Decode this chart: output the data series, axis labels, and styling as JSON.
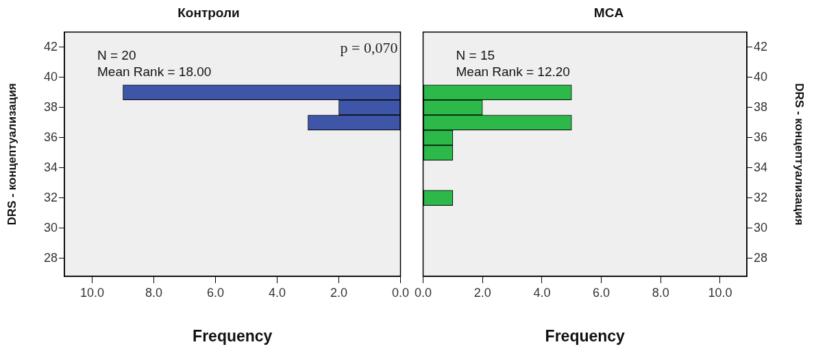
{
  "chart_data": [
    {
      "type": "histogram",
      "orientation": "horizontal",
      "title": "Контроли",
      "xlabel": "Frequency",
      "ylabel": "DRS - концептуализация",
      "bins": [
        31.5,
        32.5,
        33.5,
        34.5,
        35.5,
        36.5,
        37.5,
        38.5,
        39.5
      ],
      "values": [
        0,
        0,
        0,
        0,
        0,
        3,
        2,
        9
      ],
      "color": "#3f56a8",
      "xlim": [
        10.9,
        0
      ],
      "xticks": [
        {
          "value": 10,
          "label": "10.0"
        },
        {
          "value": 8,
          "label": "8.0"
        },
        {
          "value": 6,
          "label": "6.0"
        },
        {
          "value": 4,
          "label": "4.0"
        },
        {
          "value": 2,
          "label": "2.0"
        },
        {
          "value": 0,
          "label": "0.0"
        }
      ],
      "ylim": [
        26.8,
        43
      ],
      "yticks": [
        28,
        30,
        32,
        34,
        36,
        38,
        40,
        42
      ],
      "grid": false,
      "annotations": [
        "N = 20",
        "Mean Rank = 18.00",
        "p = 0,070"
      ]
    },
    {
      "type": "histogram",
      "orientation": "horizontal",
      "title": "MCA",
      "xlabel": "Frequency",
      "ylabel": "DRS - концептуализация",
      "bins": [
        31.5,
        32.5,
        33.5,
        34.5,
        35.5,
        36.5,
        37.5,
        38.5,
        39.5
      ],
      "values": [
        1,
        0,
        0,
        1,
        1,
        5,
        2,
        5
      ],
      "color": "#2db84a",
      "xlim": [
        0,
        10.9
      ],
      "xticks": [
        {
          "value": 0,
          "label": "0.0"
        },
        {
          "value": 2,
          "label": "2.0"
        },
        {
          "value": 4,
          "label": "4.0"
        },
        {
          "value": 6,
          "label": "6.0"
        },
        {
          "value": 8,
          "label": "8.0"
        },
        {
          "value": 10,
          "label": "10.0"
        }
      ],
      "ylim": [
        26.8,
        43
      ],
      "yticks": [
        28,
        30,
        32,
        34,
        36,
        38,
        40,
        42
      ],
      "grid": false,
      "annotations": [
        "N = 15",
        "Mean Rank = 12.20"
      ]
    }
  ]
}
